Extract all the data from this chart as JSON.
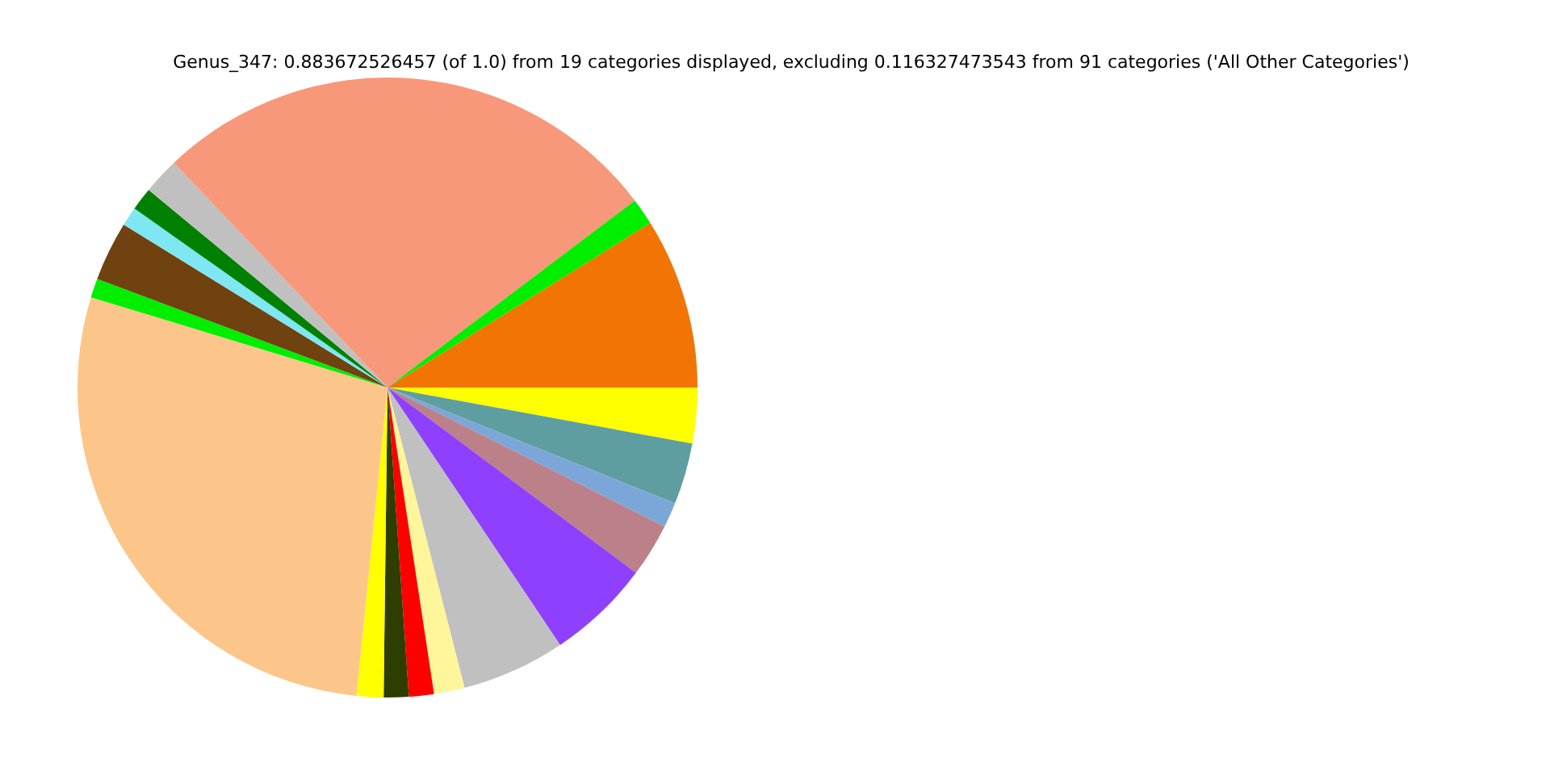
{
  "chart_data": {
    "type": "pie",
    "title": "Genus_347: 0.883672526457 (of 1.0) from 19 categories displayed, excluding 0.116327473543 from 91 categories ('All Other Categories')",
    "categories": [
      null,
      null,
      null,
      null,
      null,
      null,
      null,
      null,
      null,
      null,
      null,
      null,
      null,
      null,
      null,
      null,
      null,
      null,
      null
    ],
    "values": [
      2.9,
      3.2,
      1.3,
      2.8,
      5.4,
      5.4,
      1.6,
      1.3,
      1.3,
      1.4,
      28.1,
      1.0,
      3.1,
      1.0,
      1.2,
      1.9,
      26.8,
      1.4,
      8.9
    ],
    "colors": [
      "#ffff00",
      "#5f9ea0",
      "#7ba7d8",
      "#bc8088",
      "#8f40ff",
      "#c0c0c0",
      "#fff59a",
      "#ff0000",
      "#2e3d00",
      "#ffff00",
      "#fcc68a",
      "#00ee00",
      "#70420f",
      "#7ee7f2",
      "#008000",
      "#c0c0c0",
      "#f8987a",
      "#00ee00",
      "#f27405"
    ],
    "legend": false
  }
}
